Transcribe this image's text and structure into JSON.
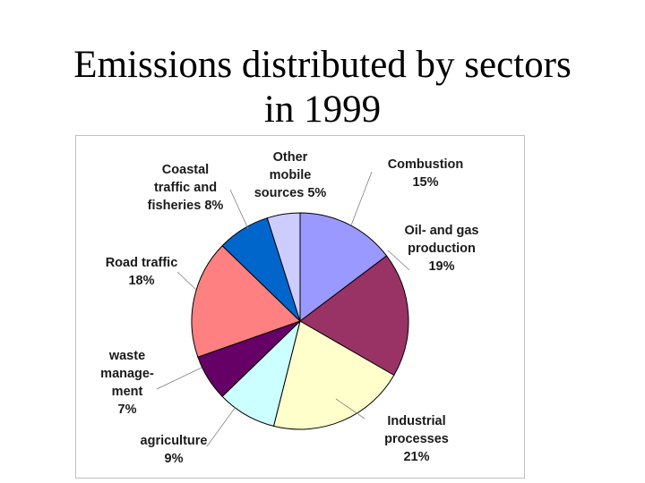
{
  "slide": {
    "title_lines": [
      "Emissions distributed by sectors",
      "in 1999"
    ]
  },
  "chart_data": {
    "type": "pie",
    "title": "Emissions distributed by sectors in 1999",
    "unit": "%",
    "slices": [
      {
        "label_lines": [
          "Combustion",
          "15%"
        ],
        "value": 15,
        "color": "#9999ff"
      },
      {
        "label_lines": [
          "Oil- and gas",
          "production",
          "19%"
        ],
        "value": 19,
        "color": "#993366"
      },
      {
        "label_lines": [
          "Industrial",
          "processes",
          "21%"
        ],
        "value": 21,
        "color": "#ffffcc"
      },
      {
        "label_lines": [
          "agriculture",
          "9%"
        ],
        "value": 9,
        "color": "#ccffff"
      },
      {
        "label_lines": [
          "waste",
          "manage-",
          "ment",
          "7%"
        ],
        "value": 7,
        "color": "#660066"
      },
      {
        "label_lines": [
          "Road traffic",
          "18%"
        ],
        "value": 18,
        "color": "#ff8080"
      },
      {
        "label_lines": [
          "Coastal",
          "traffic and",
          "fisheries 8%"
        ],
        "value": 8,
        "color": "#0066cc"
      },
      {
        "label_lines": [
          "Other",
          "mobile",
          "sources 5%"
        ],
        "value": 5,
        "color": "#ccccff"
      }
    ],
    "start": "12 o'clock",
    "direction": "clockwise",
    "legend": "none (labels placed outside slices with leader lines)"
  }
}
